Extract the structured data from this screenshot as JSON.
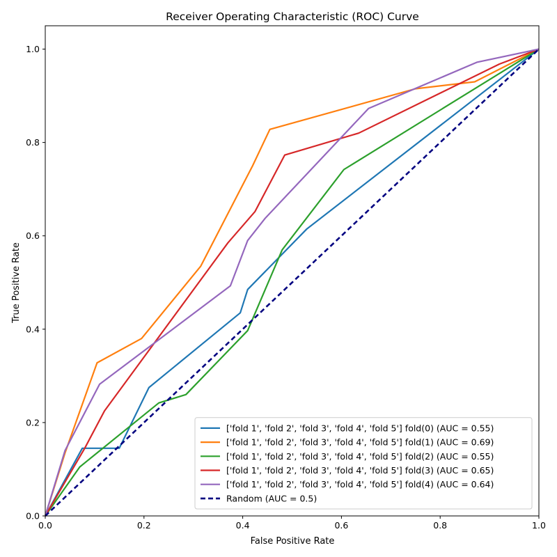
{
  "chart_data": {
    "type": "line",
    "title": "Receiver Operating Characteristic (ROC) Curve",
    "xlabel": "False Positive Rate",
    "ylabel": "True Positive Rate",
    "xlim": [
      0.0,
      1.0
    ],
    "ylim": [
      0.0,
      1.05
    ],
    "x_ticks": [
      "0.0",
      "0.2",
      "0.4",
      "0.6",
      "0.8",
      "1.0"
    ],
    "y_ticks": [
      "0.0",
      "0.2",
      "0.4",
      "0.6",
      "0.8",
      "1.0"
    ],
    "legend_position": "bottom-right",
    "grid": false,
    "series": [
      {
        "name": "['fold 1', 'fold 2', 'fold 3', 'fold 4', 'fold 5'] fold(0) (AUC = 0.55)",
        "color": "#1f77b4",
        "style": "solid",
        "x": [
          0.0,
          0.075,
          0.15,
          0.21,
          0.395,
          0.41,
          0.53,
          1.0
        ],
        "y": [
          0.0,
          0.145,
          0.145,
          0.275,
          0.435,
          0.485,
          0.615,
          1.0
        ]
      },
      {
        "name": "['fold 1', 'fold 2', 'fold 3', 'fold 4', 'fold 5'] fold(1) (AUC = 0.69)",
        "color": "#ff7f0e",
        "style": "solid",
        "x": [
          0.0,
          0.04,
          0.105,
          0.195,
          0.315,
          0.42,
          0.455,
          0.75,
          0.87,
          1.0
        ],
        "y": [
          0.0,
          0.135,
          0.328,
          0.38,
          0.535,
          0.75,
          0.828,
          0.915,
          0.93,
          1.0
        ]
      },
      {
        "name": "['fold 1', 'fold 2', 'fold 3', 'fold 4', 'fold 5'] fold(2) (AUC = 0.55)",
        "color": "#2ca02c",
        "style": "solid",
        "x": [
          0.0,
          0.07,
          0.23,
          0.285,
          0.41,
          0.48,
          0.605,
          1.0
        ],
        "y": [
          0.0,
          0.105,
          0.242,
          0.26,
          0.397,
          0.57,
          0.742,
          1.0
        ]
      },
      {
        "name": "['fold 1', 'fold 2', 'fold 3', 'fold 4', 'fold 5'] fold(3) (AUC = 0.65)",
        "color": "#d62728",
        "style": "solid",
        "x": [
          0.0,
          0.08,
          0.12,
          0.37,
          0.425,
          0.485,
          0.635,
          0.92,
          1.0
        ],
        "y": [
          0.0,
          0.145,
          0.225,
          0.585,
          0.652,
          0.773,
          0.82,
          0.968,
          1.0
        ]
      },
      {
        "name": "['fold 1', 'fold 2', 'fold 3', 'fold 4', 'fold 5'] fold(4) (AUC = 0.64)",
        "color": "#9467bd",
        "style": "solid",
        "x": [
          0.0,
          0.04,
          0.11,
          0.375,
          0.41,
          0.445,
          0.655,
          0.875,
          1.0
        ],
        "y": [
          0.0,
          0.14,
          0.282,
          0.493,
          0.59,
          0.637,
          0.873,
          0.972,
          1.0
        ]
      },
      {
        "name": "Random (AUC = 0.5)",
        "color": "#000080",
        "style": "dashed",
        "x": [
          0.0,
          1.0
        ],
        "y": [
          0.0,
          1.0
        ]
      }
    ]
  }
}
